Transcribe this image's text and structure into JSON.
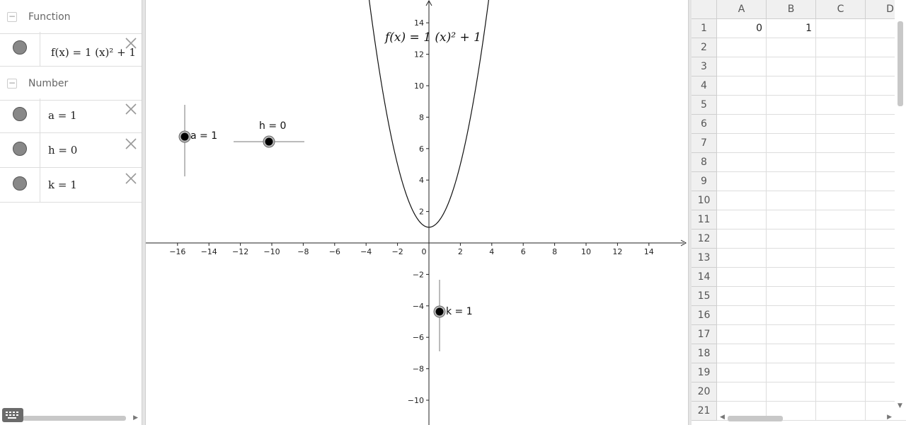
{
  "algebra": {
    "groups": [
      {
        "label": "Function",
        "items": [
          {
            "expr": "f(x) = 1 (x)² + 1"
          }
        ]
      },
      {
        "label": "Number",
        "items": [
          {
            "expr": "a = 1"
          },
          {
            "expr": "h = 0"
          },
          {
            "expr": "k = 1"
          }
        ]
      }
    ]
  },
  "graphics": {
    "function_label": "f(x) = 1 (x)² + 1",
    "x_ticks": [
      "−16",
      "−14",
      "−12",
      "−10",
      "−8",
      "−6",
      "−4",
      "−2",
      "0",
      "2",
      "4",
      "6",
      "8",
      "10",
      "12",
      "14"
    ],
    "y_ticks": [
      "14",
      "12",
      "10",
      "8",
      "6",
      "4",
      "2",
      "−2",
      "−4",
      "−6",
      "−8",
      "−10"
    ],
    "sliders": [
      {
        "label": "a = 1",
        "value": 1
      },
      {
        "label": "h = 0",
        "value": 0
      },
      {
        "label": "k = 1",
        "value": 1
      }
    ],
    "curve": {
      "a": 1,
      "h": 0,
      "k": 1
    }
  },
  "spreadsheet": {
    "columns": [
      "A",
      "B",
      "C",
      "D"
    ],
    "rows": [
      "1",
      "2",
      "3",
      "4",
      "5",
      "6",
      "7",
      "8",
      "9",
      "10",
      "11",
      "12",
      "13",
      "14",
      "15",
      "16",
      "17",
      "18",
      "19",
      "20",
      "21"
    ],
    "cells": {
      "A1": "0",
      "B1": "1"
    }
  }
}
